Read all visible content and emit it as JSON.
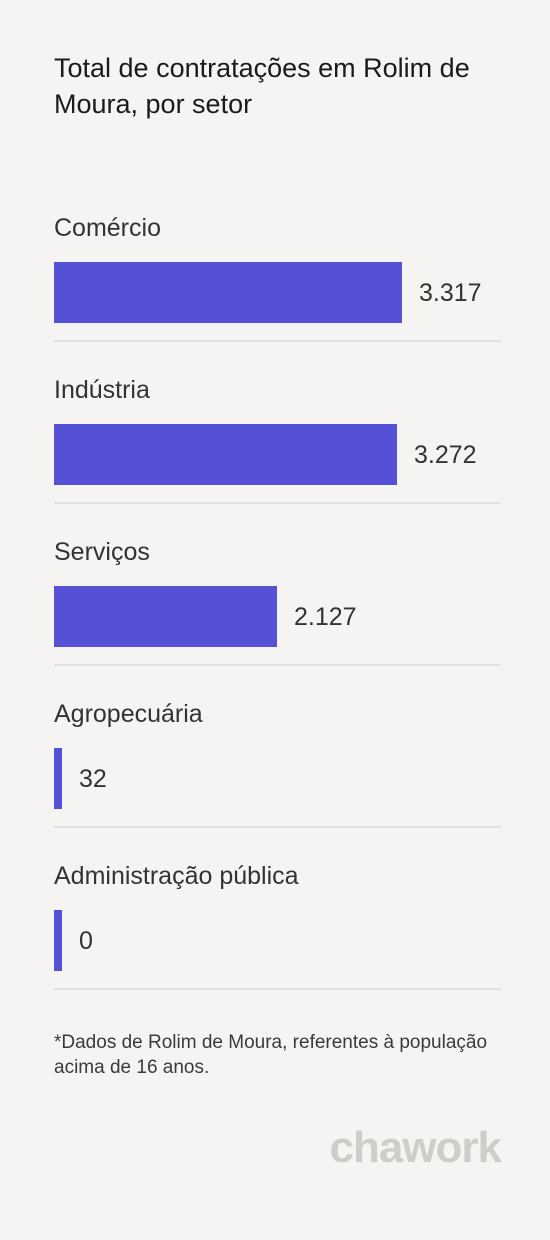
{
  "title": "Total de contratações em Rolim de Moura, por setor",
  "chart_data": {
    "type": "bar",
    "orientation": "horizontal",
    "categories": [
      "Comércio",
      "Indústria",
      "Serviços",
      "Agropecuária",
      "Administração pública"
    ],
    "values": [
      3317,
      3272,
      2127,
      32,
      0
    ],
    "value_labels": [
      "3.317",
      "3.272",
      "2.127",
      "32",
      "0"
    ],
    "bar_color": "#5551d6",
    "grid": false,
    "legend": "none"
  },
  "footnote": "*Dados de Rolim de Moura, referentes à população acima de 16 anos.",
  "logo_text": "chawork"
}
